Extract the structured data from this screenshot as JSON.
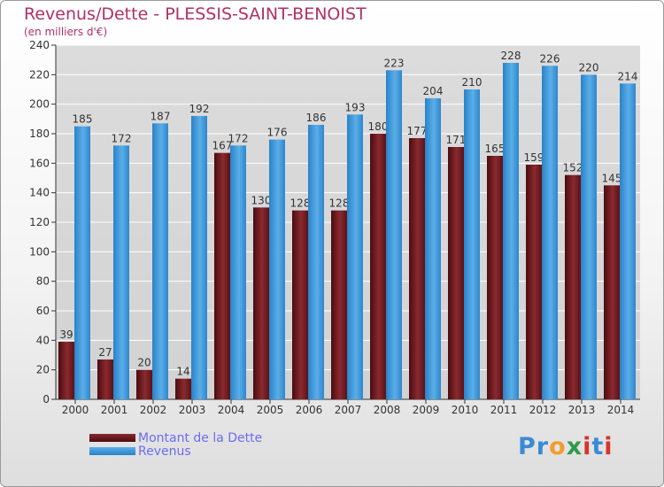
{
  "chart_data": {
    "type": "bar",
    "title": "Revenus/Dette - PLESSIS-SAINT-BENOIST",
    "subtitle": "(en milliers d'€)",
    "xlabel": "",
    "ylabel": "",
    "ylim": [
      0,
      240
    ],
    "yticks": [
      "0",
      "20",
      "40",
      "60",
      "80",
      "100",
      "120",
      "140",
      "160",
      "180",
      "200",
      "220",
      "240"
    ],
    "grid": true,
    "legend_position": "bottom-left",
    "categories": [
      "2000",
      "2001",
      "2002",
      "2003",
      "2004",
      "2005",
      "2006",
      "2007",
      "2008",
      "2009",
      "2010",
      "2011",
      "2012",
      "2013",
      "2014"
    ],
    "series": [
      {
        "name": "Montant de la Dette",
        "color": "#6b1a1f",
        "values": [
          39,
          27,
          20,
          14,
          167,
          130,
          128,
          128,
          180,
          177,
          171,
          165,
          159,
          152,
          145
        ]
      },
      {
        "name": "Revenus",
        "color": "#3f97d9",
        "values": [
          185,
          172,
          187,
          192,
          172,
          176,
          186,
          193,
          223,
          204,
          210,
          228,
          226,
          220,
          214
        ]
      }
    ]
  },
  "colors": {
    "title": "#b0306a",
    "legend_text": "#6c6cf4",
    "axis": "#333333",
    "grid": "#ffffff"
  },
  "logo": {
    "letters": [
      "P",
      "r",
      "o",
      "x",
      "i",
      "t",
      "i"
    ],
    "colors": [
      "#3a8ad6",
      "#3a8ad6",
      "#f39c2f",
      "#2e9b4b",
      "#d8342a",
      "#3a8ad6",
      "#d8342a"
    ]
  }
}
